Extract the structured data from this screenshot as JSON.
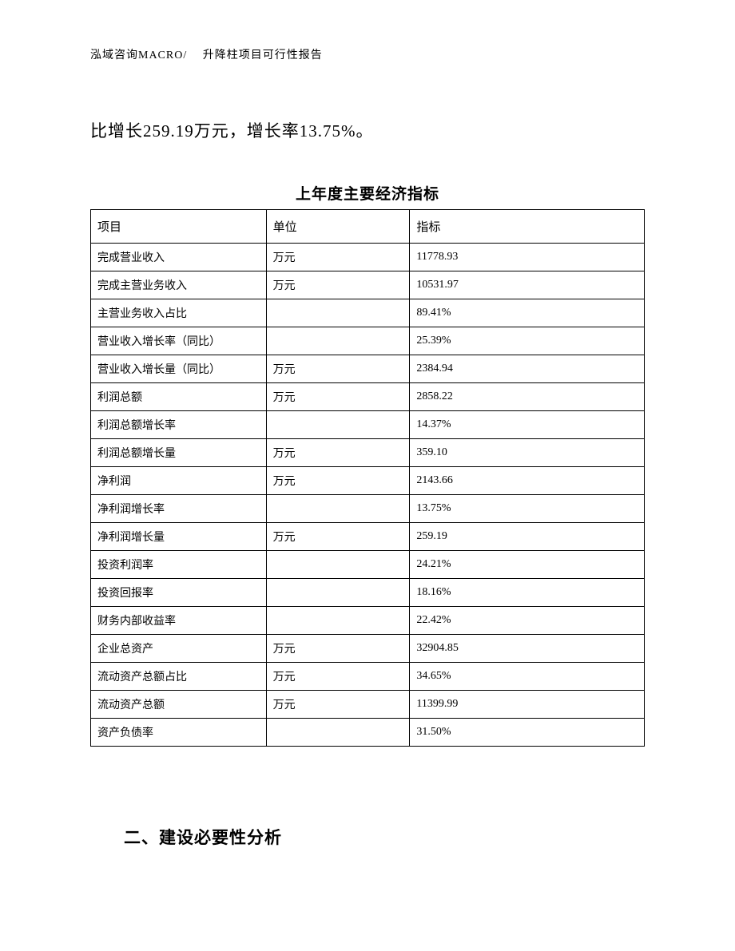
{
  "header": {
    "text": "泓域咨询MACRO/　 升降柱项目可行性报告"
  },
  "bodyText": "比增长259.19万元，增长率13.75%。",
  "tableTitle": "上年度主要经济指标",
  "table": {
    "columns": {
      "item": "项目",
      "unit": "单位",
      "value": "指标"
    },
    "rows": [
      {
        "item": "完成营业收入",
        "unit": "万元",
        "value": "11778.93"
      },
      {
        "item": "完成主营业务收入",
        "unit": "万元",
        "value": "10531.97"
      },
      {
        "item": "主营业务收入占比",
        "unit": "",
        "value": "89.41%"
      },
      {
        "item": "营业收入增长率（同比）",
        "unit": "",
        "value": "25.39%"
      },
      {
        "item": "营业收入增长量（同比）",
        "unit": "万元",
        "value": "2384.94"
      },
      {
        "item": "利润总额",
        "unit": "万元",
        "value": "2858.22"
      },
      {
        "item": "利润总额增长率",
        "unit": "",
        "value": "14.37%"
      },
      {
        "item": "利润总额增长量",
        "unit": "万元",
        "value": "359.10"
      },
      {
        "item": "净利润",
        "unit": "万元",
        "value": "2143.66"
      },
      {
        "item": "净利润增长率",
        "unit": "",
        "value": "13.75%"
      },
      {
        "item": "净利润增长量",
        "unit": "万元",
        "value": "259.19"
      },
      {
        "item": "投资利润率",
        "unit": "",
        "value": "24.21%"
      },
      {
        "item": "投资回报率",
        "unit": "",
        "value": "18.16%"
      },
      {
        "item": "财务内部收益率",
        "unit": "",
        "value": "22.42%"
      },
      {
        "item": "企业总资产",
        "unit": "万元",
        "value": "32904.85"
      },
      {
        "item": "流动资产总额占比",
        "unit": "万元",
        "value": "34.65%"
      },
      {
        "item": "流动资产总额",
        "unit": "万元",
        "value": "11399.99"
      },
      {
        "item": "资产负债率",
        "unit": "",
        "value": "31.50%"
      }
    ]
  },
  "sectionHeading": "二、建设必要性分析"
}
